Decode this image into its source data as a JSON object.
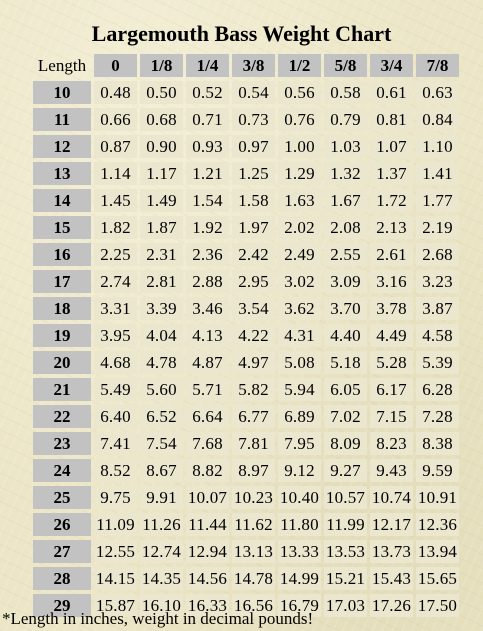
{
  "title": "Largemouth Bass Weight Chart",
  "corner_label": "Length",
  "columns": [
    "0",
    "1/8",
    "1/4",
    "3/8",
    "1/2",
    "5/8",
    "3/4",
    "7/8"
  ],
  "rows": [
    {
      "length": "10",
      "weights": [
        "0.48",
        "0.50",
        "0.52",
        "0.54",
        "0.56",
        "0.58",
        "0.61",
        "0.63"
      ]
    },
    {
      "length": "11",
      "weights": [
        "0.66",
        "0.68",
        "0.71",
        "0.73",
        "0.76",
        "0.79",
        "0.81",
        "0.84"
      ]
    },
    {
      "length": "12",
      "weights": [
        "0.87",
        "0.90",
        "0.93",
        "0.97",
        "1.00",
        "1.03",
        "1.07",
        "1.10"
      ]
    },
    {
      "length": "13",
      "weights": [
        "1.14",
        "1.17",
        "1.21",
        "1.25",
        "1.29",
        "1.32",
        "1.37",
        "1.41"
      ]
    },
    {
      "length": "14",
      "weights": [
        "1.45",
        "1.49",
        "1.54",
        "1.58",
        "1.63",
        "1.67",
        "1.72",
        "1.77"
      ]
    },
    {
      "length": "15",
      "weights": [
        "1.82",
        "1.87",
        "1.92",
        "1.97",
        "2.02",
        "2.08",
        "2.13",
        "2.19"
      ]
    },
    {
      "length": "16",
      "weights": [
        "2.25",
        "2.31",
        "2.36",
        "2.42",
        "2.49",
        "2.55",
        "2.61",
        "2.68"
      ]
    },
    {
      "length": "17",
      "weights": [
        "2.74",
        "2.81",
        "2.88",
        "2.95",
        "3.02",
        "3.09",
        "3.16",
        "3.23"
      ]
    },
    {
      "length": "18",
      "weights": [
        "3.31",
        "3.39",
        "3.46",
        "3.54",
        "3.62",
        "3.70",
        "3.78",
        "3.87"
      ]
    },
    {
      "length": "19",
      "weights": [
        "3.95",
        "4.04",
        "4.13",
        "4.22",
        "4.31",
        "4.40",
        "4.49",
        "4.58"
      ]
    },
    {
      "length": "20",
      "weights": [
        "4.68",
        "4.78",
        "4.87",
        "4.97",
        "5.08",
        "5.18",
        "5.28",
        "5.39"
      ]
    },
    {
      "length": "21",
      "weights": [
        "5.49",
        "5.60",
        "5.71",
        "5.82",
        "5.94",
        "6.05",
        "6.17",
        "6.28"
      ]
    },
    {
      "length": "22",
      "weights": [
        "6.40",
        "6.52",
        "6.64",
        "6.77",
        "6.89",
        "7.02",
        "7.15",
        "7.28"
      ]
    },
    {
      "length": "23",
      "weights": [
        "7.41",
        "7.54",
        "7.68",
        "7.81",
        "7.95",
        "8.09",
        "8.23",
        "8.38"
      ]
    },
    {
      "length": "24",
      "weights": [
        "8.52",
        "8.67",
        "8.82",
        "8.97",
        "9.12",
        "9.27",
        "9.43",
        "9.59"
      ]
    },
    {
      "length": "25",
      "weights": [
        "9.75",
        "9.91",
        "10.07",
        "10.23",
        "10.40",
        "10.57",
        "10.74",
        "10.91"
      ]
    },
    {
      "length": "26",
      "weights": [
        "11.09",
        "11.26",
        "11.44",
        "11.62",
        "11.80",
        "11.99",
        "12.17",
        "12.36"
      ]
    },
    {
      "length": "27",
      "weights": [
        "12.55",
        "12.74",
        "12.94",
        "13.13",
        "13.33",
        "13.53",
        "13.73",
        "13.94"
      ]
    },
    {
      "length": "28",
      "weights": [
        "14.15",
        "14.35",
        "14.56",
        "14.78",
        "14.99",
        "15.21",
        "15.43",
        "15.65"
      ]
    },
    {
      "length": "29",
      "weights": [
        "15.87",
        "16.10",
        "16.33",
        "16.56",
        "16.79",
        "17.03",
        "17.26",
        "17.50"
      ]
    }
  ],
  "footnote": "*Length in inches, weight in decimal pounds!",
  "colors": {
    "background": "#ece6c6",
    "header_cell": "#c2c2c2",
    "value_cell": "#ebe6ce"
  }
}
